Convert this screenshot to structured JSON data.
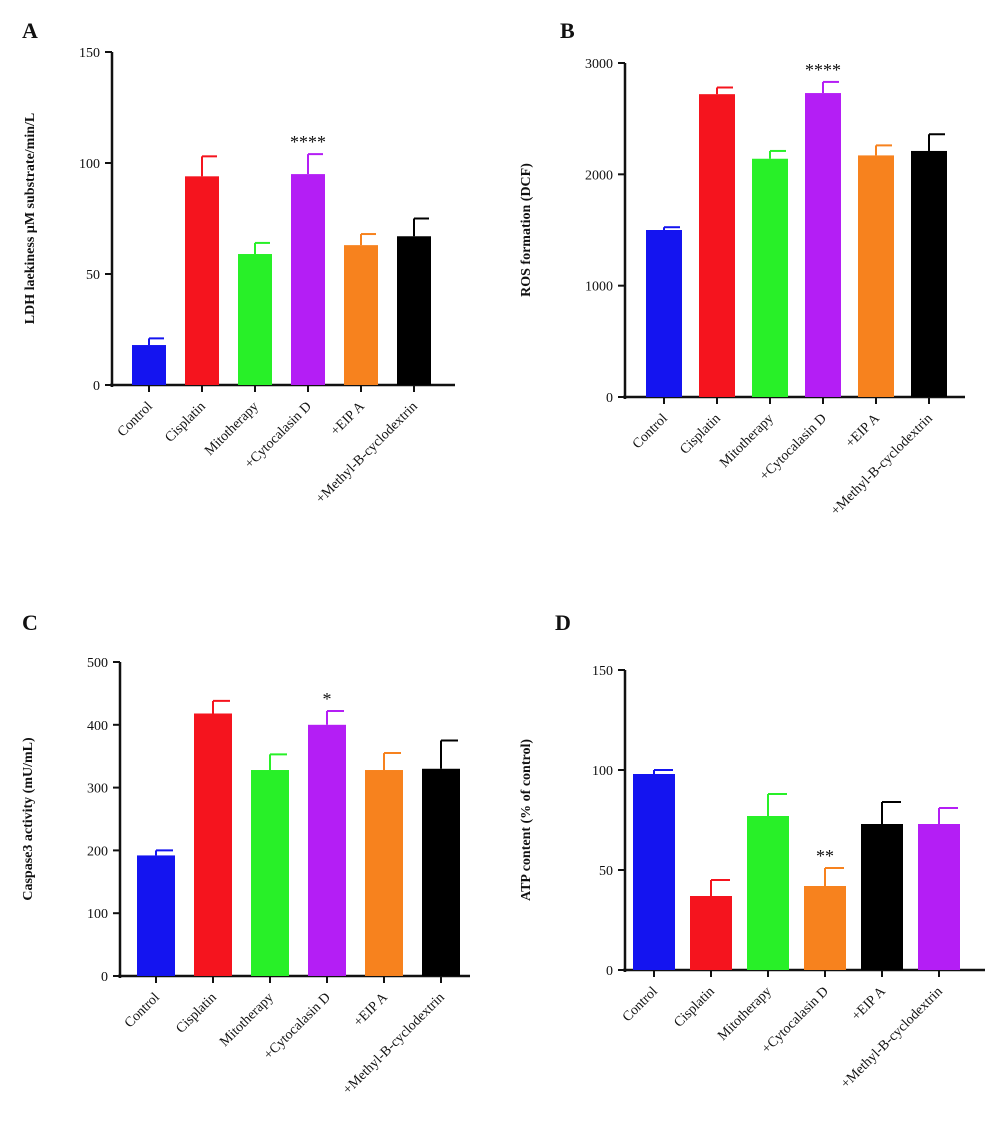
{
  "chart_data": [
    {
      "panel": "A",
      "type": "bar",
      "ylabel": "LDH laekiness µM substrate/min/L",
      "ylim": [
        0,
        150
      ],
      "yticks": [
        0,
        50,
        100,
        150
      ],
      "categories": [
        "Control",
        "Cisplatin",
        "Mitotherapy",
        "+Cytocalasin D",
        "+EIP A",
        "+Methyl-B-cyclodextrin"
      ],
      "values": [
        18,
        94,
        59,
        95,
        63,
        67
      ],
      "errors": [
        3,
        9,
        5,
        9,
        5,
        8
      ],
      "colors": [
        "#1414f0",
        "#f5141e",
        "#28f028",
        "#b41ef5",
        "#f7821e",
        "#000000"
      ],
      "significance": [
        "",
        "",
        "",
        "****",
        "",
        ""
      ]
    },
    {
      "panel": "B",
      "type": "bar",
      "ylabel": "ROS formation (DCF)",
      "ylim": [
        0,
        3000
      ],
      "yticks": [
        0,
        1000,
        2000,
        3000
      ],
      "categories": [
        "Control",
        "Cisplatin",
        "Mitotherapy",
        "+Cytocalasin D",
        "+EIP A",
        "+Methyl-B-cyclodextrin"
      ],
      "values": [
        1500,
        2720,
        2140,
        2730,
        2170,
        2210
      ],
      "errors": [
        25,
        60,
        70,
        100,
        90,
        150
      ],
      "colors": [
        "#1414f0",
        "#f5141e",
        "#28f028",
        "#b41ef5",
        "#f7821e",
        "#000000"
      ],
      "significance": [
        "",
        "",
        "",
        "****",
        "",
        ""
      ]
    },
    {
      "panel": "C",
      "type": "bar",
      "ylabel": "Caspase3 activity (mU/mL)",
      "ylim": [
        0,
        500
      ],
      "yticks": [
        0,
        100,
        200,
        300,
        400,
        500
      ],
      "categories": [
        "Control",
        "Cisplatin",
        "Mitotherapy",
        "+Cytocalasin D",
        "+EIP A",
        "+Methyl-B-cyclodextrin"
      ],
      "values": [
        192,
        418,
        328,
        400,
        328,
        330
      ],
      "errors": [
        8,
        20,
        25,
        22,
        27,
        45
      ],
      "colors": [
        "#1414f0",
        "#f5141e",
        "#28f028",
        "#b41ef5",
        "#f7821e",
        "#000000"
      ],
      "significance": [
        "",
        "",
        "",
        "*",
        "",
        ""
      ]
    },
    {
      "panel": "D",
      "type": "bar",
      "ylabel": "ATP content (% of control)",
      "ylim": [
        0,
        150
      ],
      "yticks": [
        0,
        50,
        100,
        150
      ],
      "categories": [
        "Control",
        "Cisplatin",
        "Mitotherapy",
        "+Cytocalasin D",
        "+EIP A",
        "+Methyl-B-cyclodextrin"
      ],
      "values": [
        98,
        37,
        77,
        42,
        73,
        73
      ],
      "errors": [
        2,
        8,
        11,
        9,
        11,
        8
      ],
      "colors": [
        "#1414f0",
        "#f5141e",
        "#28f028",
        "#f7821e",
        "#000000",
        "#b41ef5"
      ],
      "significance": [
        "",
        "",
        "",
        "**",
        "",
        ""
      ]
    }
  ]
}
